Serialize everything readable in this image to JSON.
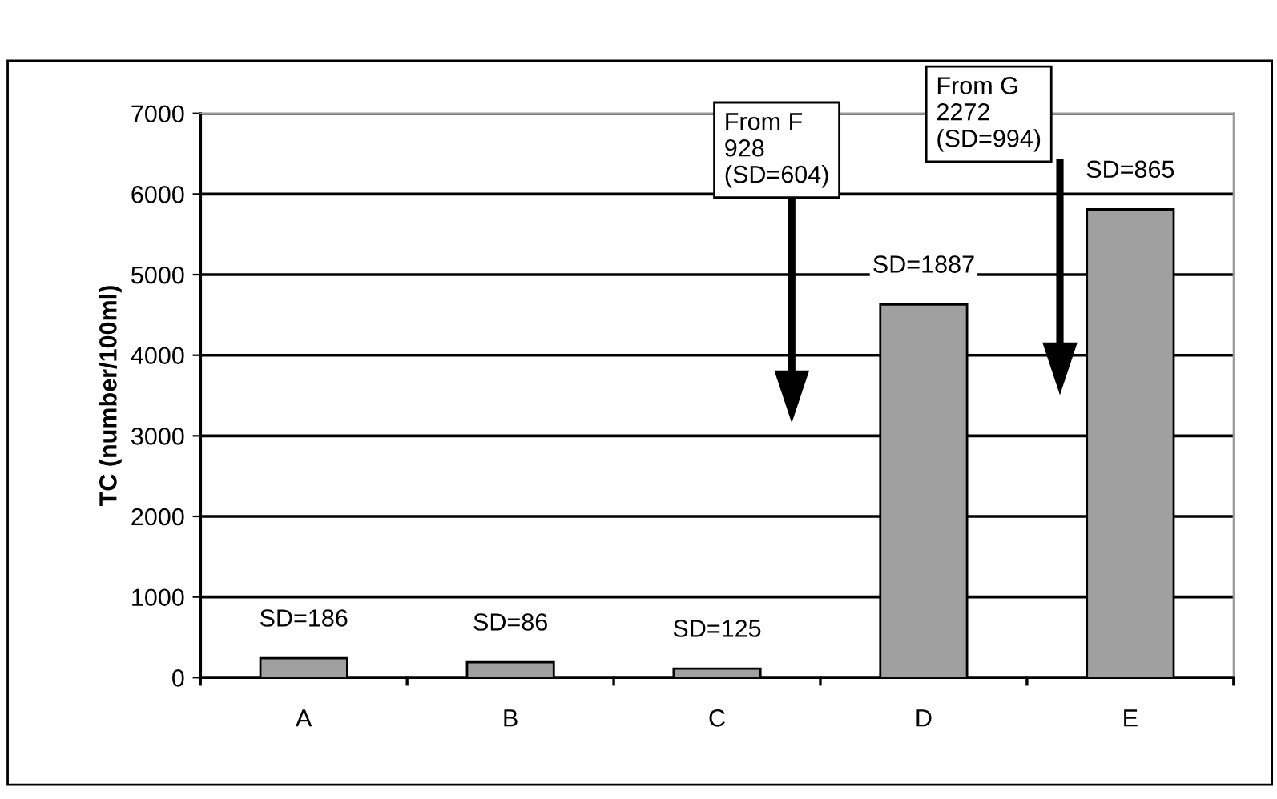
{
  "chart_data": {
    "type": "bar",
    "ylabel": "TC (number/100ml)",
    "categories": [
      "A",
      "B",
      "C",
      "D",
      "E"
    ],
    "values": [
      240,
      190,
      110,
      4630,
      5810
    ],
    "color": "#a0a0a0",
    "ylim": [
      0,
      7000
    ],
    "yticks": [
      0,
      1000,
      2000,
      3000,
      4000,
      5000,
      6000,
      7000
    ],
    "grid": "y",
    "annotations": [
      {
        "text": "SD=186",
        "x": "A",
        "y": 240
      },
      {
        "text": "SD=86",
        "x": "B",
        "y": 190
      },
      {
        "text": "SD=125",
        "x": "C",
        "y": 110
      },
      {
        "text": "SD=1887",
        "x": "D",
        "y": 4630
      },
      {
        "text": "SD=865",
        "x": "E",
        "y": 5810
      },
      "From F\n928\n(SD=604)",
      "From G\n2272\n(SD=994)"
    ]
  }
}
